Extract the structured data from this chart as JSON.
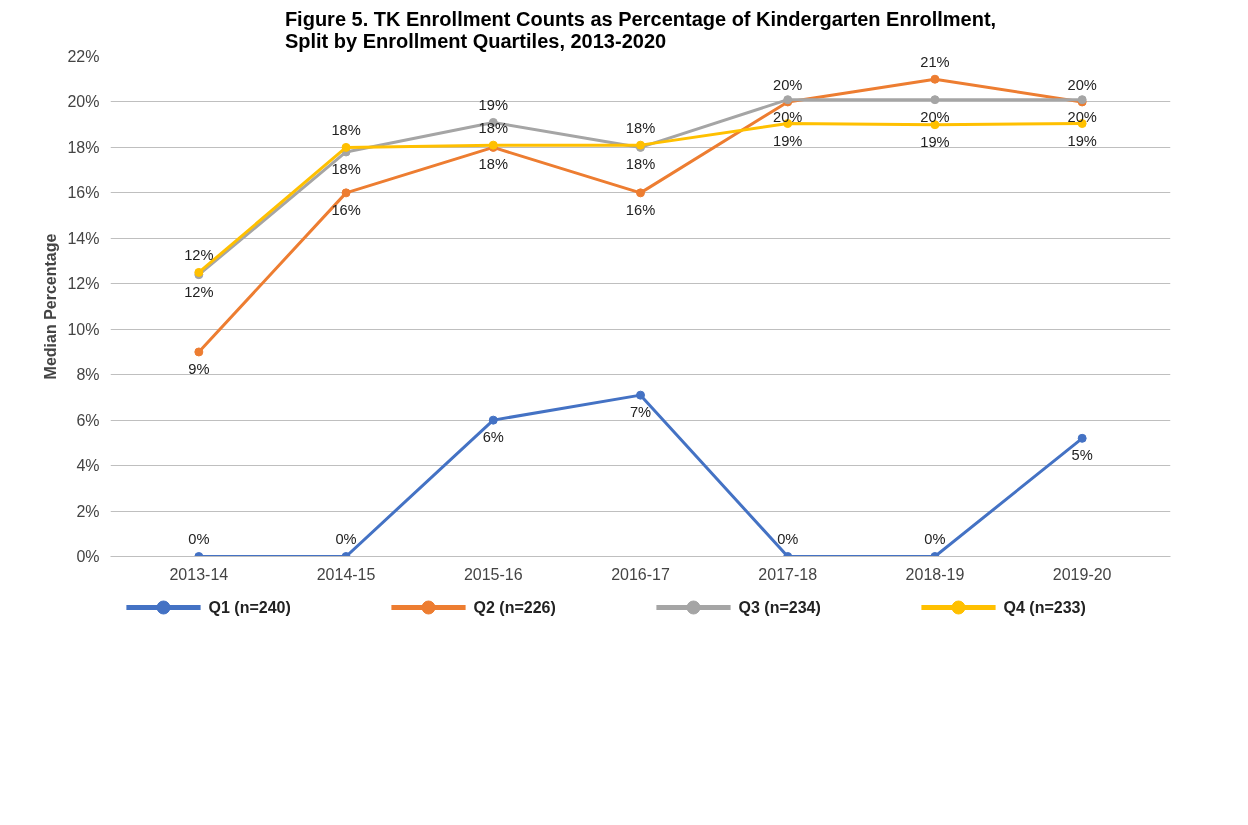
{
  "chart_data": {
    "type": "line",
    "title": "Figure 5. TK Enrollment Counts as Percentage of Kindergarten Enrollment,\nSplit by Enrollment Quartiles, 2013-2020",
    "ylabel": "Median Percentage",
    "categories": [
      "2013-14",
      "2014-15",
      "2015-16",
      "2016-17",
      "2017-18",
      "2018-19",
      "2019-20"
    ],
    "series": [
      {
        "name": "Q1 (n=240)",
        "color": "#4472c4",
        "values": [
          0,
          0,
          6,
          7.1,
          0,
          0,
          5.2
        ],
        "value_labels": [
          "0%",
          "0%",
          "6%",
          "7%",
          "0%",
          "0%",
          "5%"
        ]
      },
      {
        "name": "Q2 (n=226)",
        "color": "#ed7d31",
        "values": [
          9,
          16,
          18,
          16,
          20,
          21,
          20
        ],
        "value_labels": [
          "9%",
          "16%",
          "18%",
          "16%",
          "20%",
          "21%",
          "20%"
        ]
      },
      {
        "name": "Q3 (n=234)",
        "color": "#a5a5a5",
        "values": [
          12.4,
          17.8,
          19.1,
          18,
          20.1,
          20.1,
          20.1
        ],
        "value_labels": [
          "12%",
          "18%",
          "19%",
          "18%",
          "20%",
          "20%",
          "20%"
        ]
      },
      {
        "name": "Q4 (n=233)",
        "color": "#ffc000",
        "values": [
          12.5,
          18,
          18.1,
          18.1,
          19.05,
          19,
          19.05
        ],
        "value_labels": [
          "12%",
          "18%",
          "18%",
          "18%",
          "19%",
          "19%",
          "19%"
        ]
      }
    ],
    "ylim": [
      0,
      22
    ],
    "yticks": [
      {
        "value": 0,
        "label": "0%"
      },
      {
        "value": 2,
        "label": "2%"
      },
      {
        "value": 4,
        "label": "4%"
      },
      {
        "value": 6,
        "label": "6%"
      },
      {
        "value": 8,
        "label": "8%"
      },
      {
        "value": 10,
        "label": "10%"
      },
      {
        "value": 12,
        "label": "12%"
      },
      {
        "value": 14,
        "label": "14%"
      },
      {
        "value": 16,
        "label": "16%"
      },
      {
        "value": 18,
        "label": "18%"
      },
      {
        "value": 20,
        "label": "20%"
      },
      {
        "value": 22,
        "label": "22%"
      }
    ],
    "grid": "y",
    "legend": "bottom",
    "marker": "circle",
    "line_style": "solid"
  }
}
